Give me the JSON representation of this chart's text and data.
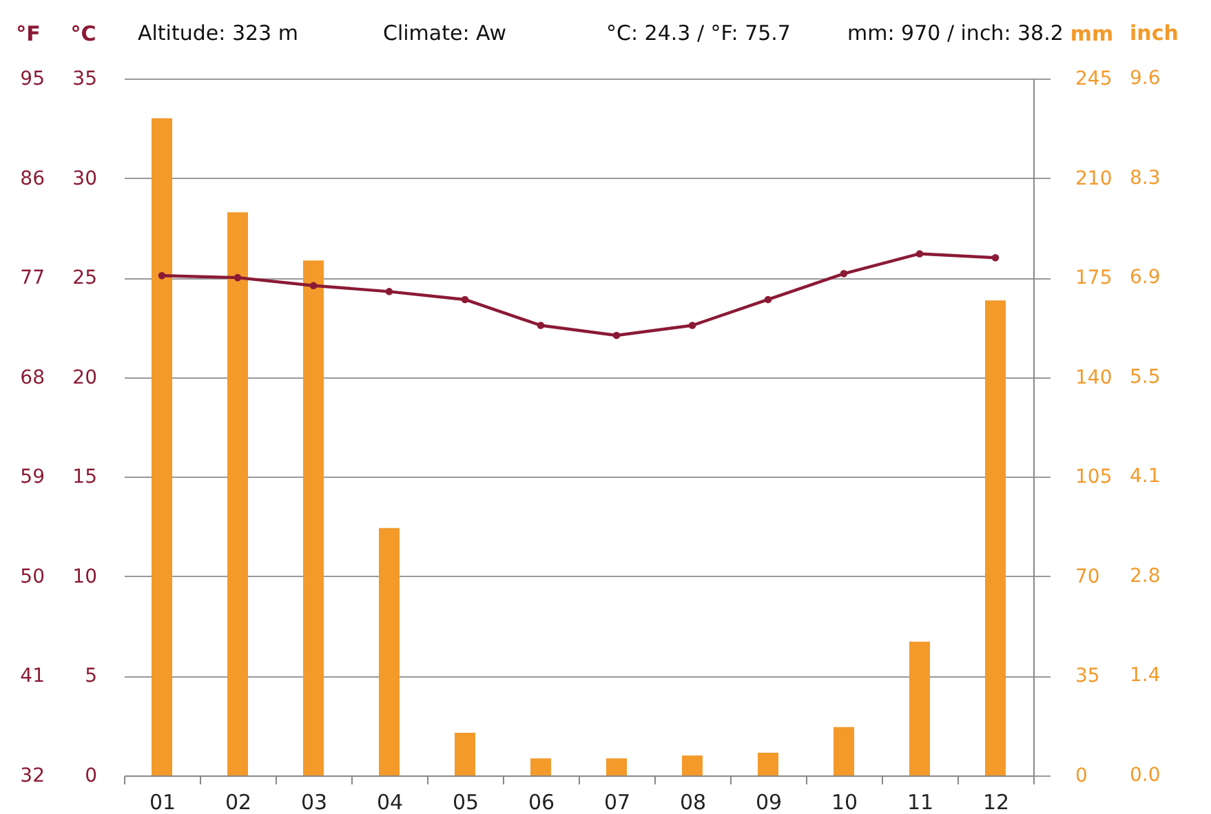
{
  "chart_data": {
    "type": "bar",
    "categories": [
      "01",
      "02",
      "03",
      "04",
      "05",
      "06",
      "07",
      "08",
      "09",
      "10",
      "11",
      "12"
    ],
    "series": [
      {
        "axis": "y2",
        "color": "#f39a2b",
        "values": [
          231,
          198,
          181,
          87,
          15,
          6,
          6,
          7,
          8,
          17,
          47,
          167
        ]
      },
      {
        "type": "line",
        "axis": "y",
        "color": "#8b1a35",
        "marker": "circle",
        "values": [
          25.1,
          25.0,
          24.6,
          24.3,
          23.9,
          22.6,
          22.1,
          22.6,
          23.9,
          25.2,
          26.2,
          26.0
        ]
      }
    ],
    "ylabel": "°C",
    "ylim": [
      0,
      35
    ],
    "yticks": [
      0,
      5,
      10,
      15,
      20,
      25,
      30,
      35
    ],
    "y2label": "mm",
    "y2lim": [
      0,
      245
    ],
    "y2ticks": [
      0,
      35,
      70,
      105,
      140,
      175,
      210,
      245
    ],
    "y3label": "°F",
    "y3lim": [
      32,
      95
    ],
    "y3ticks": [
      32,
      41,
      50,
      59,
      68,
      77,
      86,
      95
    ],
    "annotations": [
      "Altitude: 323 m",
      "Climate: Aw",
      "°C: 24.3 / °F: 75.7",
      "mm: 970 / inch: 38.2",
      "inch",
      "0.0",
      "1.4",
      "2.8",
      "4.1",
      "5.5",
      "6.9",
      "8.3",
      "9.6"
    ],
    "grid": "y"
  }
}
